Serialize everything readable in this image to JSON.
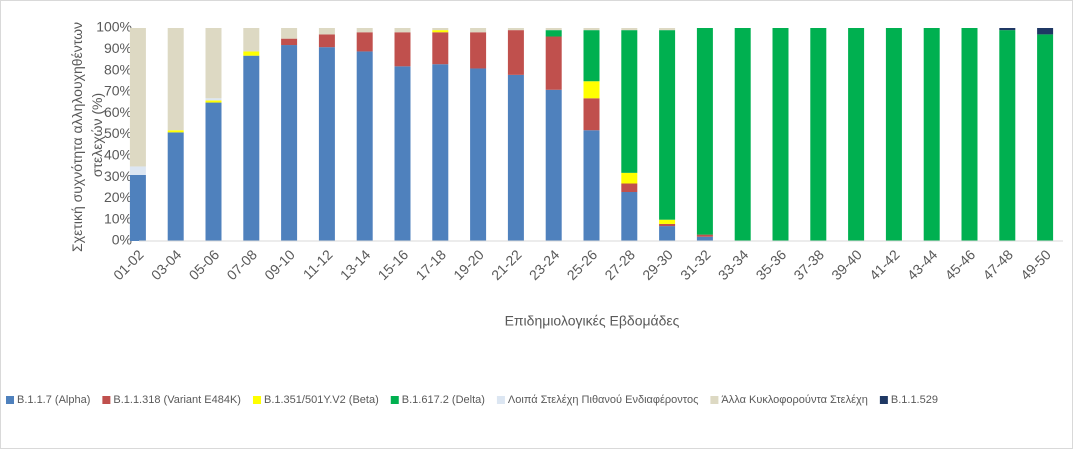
{
  "chart_data": {
    "type": "stacked-bar",
    "y_label": [
      "Σχετική συχνότητα αλληλουχηθέντων",
      "στελεχών (%)"
    ],
    "x_label": "Επιδημιολογικές Εβδομάδες",
    "categories": [
      "01-02",
      "03-04",
      "05-06",
      "07-08",
      "09-10",
      "11-12",
      "13-14",
      "15-16",
      "17-18",
      "19-20",
      "21-22",
      "23-24",
      "25-26",
      "27-28",
      "29-30",
      "31-32",
      "33-34",
      "35-36",
      "37-38",
      "39-40",
      "41-42",
      "43-44",
      "45-46",
      "47-48",
      "49-50"
    ],
    "series": [
      {
        "name": "B.1.1.7 (Alpha)",
        "color": "#4f81bd",
        "values": [
          31,
          51,
          65,
          87,
          92,
          91,
          89,
          82,
          83,
          81,
          78,
          71,
          52,
          23,
          7,
          2,
          0,
          0,
          0,
          0,
          0,
          0,
          0,
          0,
          0
        ]
      },
      {
        "name": "B.1.1.318 (Variant E484K)",
        "color": "#c0504d",
        "values": [
          0,
          0,
          0,
          0,
          3,
          6,
          9,
          16,
          15,
          17,
          21,
          25,
          15,
          4,
          1,
          1,
          0,
          0,
          0,
          0,
          0,
          0,
          0,
          0,
          0
        ]
      },
      {
        "name": "B.1.351/501Y.V2 (Beta)",
        "color": "#ffff00",
        "values": [
          0,
          1,
          1,
          2,
          0,
          0,
          0,
          0,
          1,
          0,
          0,
          0,
          8,
          5,
          2,
          0,
          0,
          0,
          0,
          0,
          0,
          0,
          0,
          0,
          0
        ]
      },
      {
        "name": "B.1.617.2 (Delta)",
        "color": "#00b050",
        "values": [
          0,
          0,
          0,
          0,
          0,
          0,
          0,
          0,
          0,
          0,
          0,
          3,
          24,
          67,
          89,
          97,
          100,
          100,
          100,
          100,
          100,
          100,
          100,
          99,
          97
        ]
      },
      {
        "name": "Λοιπά Στελέχη Πιθανού Ενδιαφέροντος",
        "color": "#dce6f2",
        "values": [
          4,
          0,
          1,
          0,
          0,
          0,
          0,
          0,
          0,
          0,
          0,
          0,
          0,
          0,
          0,
          0,
          0,
          0,
          0,
          0,
          0,
          0,
          0,
          0,
          0
        ]
      },
      {
        "name": "Άλλα Κυκλοφορούντα Στελέχη",
        "color": "#ddd9c3",
        "values": [
          65,
          48,
          33,
          11,
          5,
          3,
          2,
          2,
          1,
          2,
          1,
          1,
          1,
          1,
          1,
          0,
          0,
          0,
          0,
          0,
          0,
          0,
          0,
          0,
          0
        ]
      },
      {
        "name": "B.1.1.529",
        "color": "#1f3864",
        "values": [
          0,
          0,
          0,
          0,
          0,
          0,
          0,
          0,
          0,
          0,
          0,
          0,
          0,
          0,
          0,
          0,
          0,
          0,
          0,
          0,
          0,
          0,
          0,
          1,
          3
        ]
      }
    ],
    "ylim": [
      0,
      100
    ],
    "yticks": [
      {
        "value": 0,
        "label": "0%"
      },
      {
        "value": 10,
        "label": "10%"
      },
      {
        "value": 20,
        "label": "20%"
      },
      {
        "value": 30,
        "label": "30%"
      },
      {
        "value": 40,
        "label": "40%"
      },
      {
        "value": 50,
        "label": "50%"
      },
      {
        "value": 60,
        "label": "60%"
      },
      {
        "value": 70,
        "label": "70%"
      },
      {
        "value": 80,
        "label": "80%"
      },
      {
        "value": 90,
        "label": "90%"
      },
      {
        "value": 100,
        "label": "100%"
      }
    ],
    "legend": "bottom"
  }
}
